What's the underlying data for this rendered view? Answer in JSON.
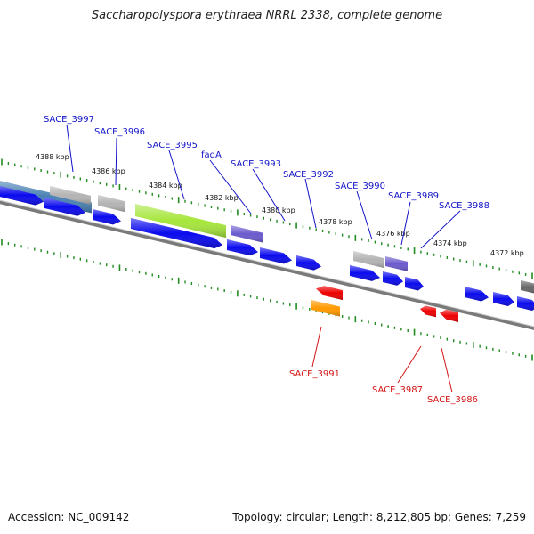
{
  "title": "Saccharopolyspora erythraea NRRL 2338, complete genome",
  "footer": {
    "accession": "Accession: NC_009142",
    "summary": "Topology: circular; Length: 8,212,805 bp; Genes: 7,259"
  },
  "colors": {
    "forward_label": "#1414c8",
    "reverse_label": "#d21414",
    "tick": "#228b22",
    "backbone": "#7a7a7a",
    "gene_blue": "#0a0aee",
    "gene_grey": "#b4b4b4",
    "gene_green": "#a6e63c",
    "gene_purple": "#6a5acd",
    "gene_red": "#ee0000",
    "gene_orange": "#ff9900",
    "gene_steel": "#4a82b4",
    "gene_darkgrey": "#666666"
  },
  "scale_labels": [
    "4388 kbp",
    "4386 kbp",
    "4384 kbp",
    "4382 kbp",
    "4380 kbp",
    "4378 kbp",
    "4376 kbp",
    "4374 kbp",
    "4372 kbp"
  ],
  "forward_labels": [
    "SACE_3997",
    "SACE_3996",
    "SACE_3995",
    "fadA",
    "SACE_3993",
    "SACE_3992",
    "SACE_3990",
    "SACE_3989",
    "SACE_3988"
  ],
  "reverse_labels": [
    "SACE_3991",
    "SACE_3987",
    "SACE_3986"
  ]
}
